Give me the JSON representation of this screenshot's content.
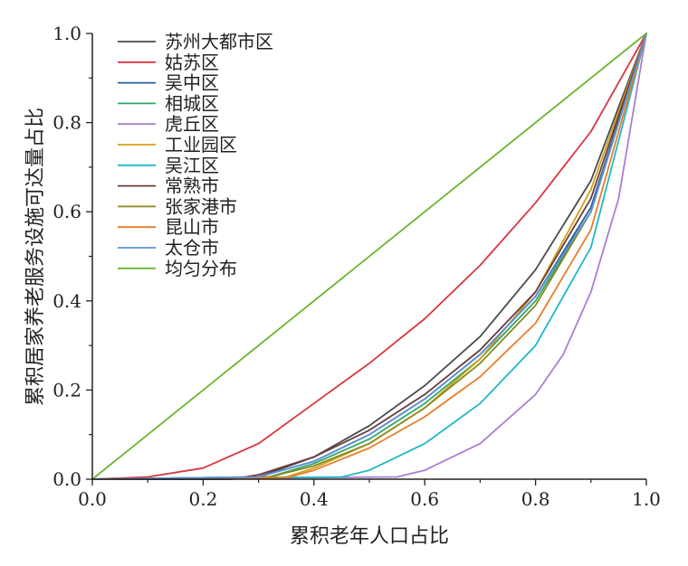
{
  "chart_data": {
    "type": "line",
    "title": "",
    "xlabel": "累积老年人口占比",
    "ylabel": "累积居家养老服务设施可达量占比",
    "xlim": [
      0,
      1
    ],
    "ylim": [
      0,
      1
    ],
    "x_ticks": [
      "0.0",
      "0.2",
      "0.4",
      "0.6",
      "0.8",
      "1.0"
    ],
    "y_ticks": [
      "0.0",
      "0.2",
      "0.4",
      "0.6",
      "0.8",
      "1.0"
    ],
    "grid": false,
    "legend_position": "top-left",
    "series": [
      {
        "name": "苏州大都市区",
        "color": "#4a4a4a",
        "x": [
          0,
          0.25,
          0.3,
          0.4,
          0.5,
          0.6,
          0.7,
          0.8,
          0.9,
          1.0
        ],
        "y": [
          0,
          0,
          0.005,
          0.05,
          0.12,
          0.21,
          0.32,
          0.47,
          0.67,
          1.0
        ]
      },
      {
        "name": "姑苏区",
        "color": "#d9363e",
        "x": [
          0,
          0.1,
          0.2,
          0.3,
          0.4,
          0.5,
          0.6,
          0.7,
          0.8,
          0.9,
          1.0
        ],
        "y": [
          0,
          0.005,
          0.025,
          0.08,
          0.17,
          0.26,
          0.36,
          0.48,
          0.62,
          0.78,
          1.0
        ]
      },
      {
        "name": "吴中区",
        "color": "#1f5e99",
        "x": [
          0,
          0.3,
          0.4,
          0.5,
          0.6,
          0.7,
          0.8,
          0.9,
          1.0
        ],
        "y": [
          0,
          0.005,
          0.04,
          0.1,
          0.18,
          0.28,
          0.41,
          0.61,
          1.0
        ]
      },
      {
        "name": "相城区",
        "color": "#2ea66a",
        "x": [
          0,
          0.32,
          0.4,
          0.5,
          0.6,
          0.7,
          0.8,
          0.9,
          1.0
        ],
        "y": [
          0,
          0.005,
          0.035,
          0.09,
          0.17,
          0.27,
          0.4,
          0.6,
          1.0
        ]
      },
      {
        "name": "虎丘区",
        "color": "#a97fd0",
        "x": [
          0,
          0.55,
          0.6,
          0.7,
          0.8,
          0.85,
          0.9,
          0.95,
          1.0
        ],
        "y": [
          0,
          0.005,
          0.02,
          0.08,
          0.19,
          0.28,
          0.42,
          0.63,
          1.0
        ]
      },
      {
        "name": "工业园区",
        "color": "#d4a017",
        "x": [
          0,
          0.35,
          0.4,
          0.5,
          0.6,
          0.7,
          0.8,
          0.9,
          1.0
        ],
        "y": [
          0,
          0.005,
          0.025,
          0.08,
          0.16,
          0.27,
          0.42,
          0.65,
          1.0
        ]
      },
      {
        "name": "吴江区",
        "color": "#1fb8c6",
        "x": [
          0,
          0.45,
          0.5,
          0.6,
          0.7,
          0.8,
          0.9,
          1.0
        ],
        "y": [
          0,
          0.005,
          0.02,
          0.08,
          0.17,
          0.3,
          0.52,
          1.0
        ]
      },
      {
        "name": "常熟市",
        "color": "#6b3a3a",
        "x": [
          0,
          0.25,
          0.3,
          0.4,
          0.5,
          0.6,
          0.7,
          0.8,
          0.9,
          1.0
        ],
        "y": [
          0,
          0,
          0.01,
          0.05,
          0.11,
          0.19,
          0.29,
          0.42,
          0.63,
          1.0
        ]
      },
      {
        "name": "张家港市",
        "color": "#8a8a1a",
        "x": [
          0,
          0.32,
          0.4,
          0.5,
          0.6,
          0.7,
          0.8,
          0.9,
          1.0
        ],
        "y": [
          0,
          0.005,
          0.03,
          0.08,
          0.16,
          0.26,
          0.39,
          0.6,
          1.0
        ]
      },
      {
        "name": "昆山市",
        "color": "#e87d2a",
        "x": [
          0,
          0.35,
          0.4,
          0.5,
          0.6,
          0.7,
          0.8,
          0.9,
          1.0
        ],
        "y": [
          0,
          0.003,
          0.02,
          0.07,
          0.14,
          0.23,
          0.35,
          0.56,
          1.0
        ]
      },
      {
        "name": "太仓市",
        "color": "#5b93d8",
        "x": [
          0,
          0.3,
          0.4,
          0.5,
          0.6,
          0.7,
          0.8,
          0.9,
          1.0
        ],
        "y": [
          0,
          0.005,
          0.04,
          0.1,
          0.18,
          0.28,
          0.41,
          0.6,
          1.0
        ]
      },
      {
        "name": "均匀分布",
        "color": "#6bb530",
        "x": [
          0,
          1.0
        ],
        "y": [
          0,
          1.0
        ]
      }
    ]
  }
}
